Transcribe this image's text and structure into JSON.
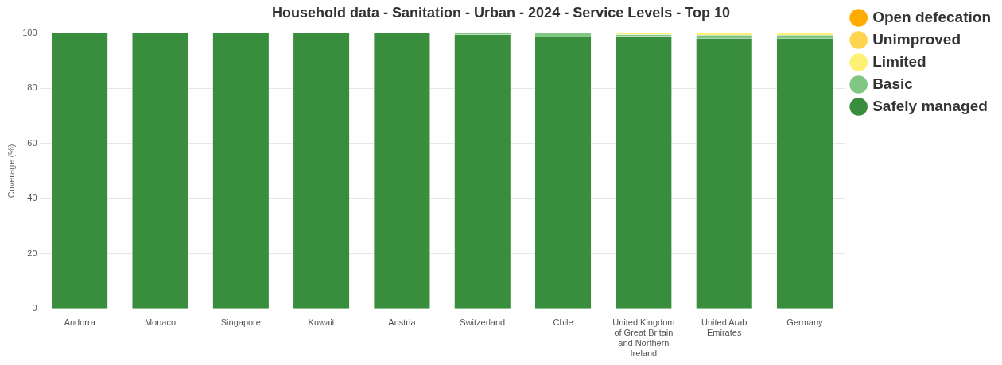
{
  "chart_data": {
    "type": "bar",
    "title": "Household data - Sanitation - Urban - 2024 - Service Levels - Top 10",
    "ylabel": "Coverage (%)",
    "categories": [
      "Andorra",
      "Monaco",
      "Singapore",
      "Kuwait",
      "Austria",
      "Switzerland",
      "Chile",
      "United Kingdom of Great Britain and Northern Ireland",
      "United Arab Emirates",
      "Germany"
    ],
    "stacked": true,
    "ylim": [
      0,
      100
    ],
    "yticks": [
      0,
      20,
      40,
      60,
      80,
      100
    ],
    "grid": "y",
    "legend": "top right",
    "marker": "circle",
    "series": [
      {
        "name": "Safely managed",
        "color": "#388e3c",
        "values": [
          100,
          100,
          100,
          100,
          100,
          99.4,
          98.7,
          98.8,
          98.1,
          98.1
        ]
      },
      {
        "name": "Basic",
        "color": "#81c784",
        "values": [
          0,
          0,
          0,
          0,
          0,
          0.6,
          1.3,
          0.7,
          1.2,
          1.2
        ]
      },
      {
        "name": "Limited",
        "color": "#fff176",
        "values": [
          0,
          0,
          0,
          0,
          0,
          0,
          0,
          0.5,
          0.7,
          0.7
        ]
      },
      {
        "name": "Unimproved",
        "color": "#ffd54f",
        "values": [
          0,
          0,
          0,
          0,
          0,
          0,
          0,
          0,
          0,
          0
        ]
      },
      {
        "name": "Open defecation",
        "color": "#ffab00",
        "values": [
          0,
          0,
          0,
          0,
          0,
          0,
          0,
          0,
          0,
          0
        ]
      }
    ]
  }
}
